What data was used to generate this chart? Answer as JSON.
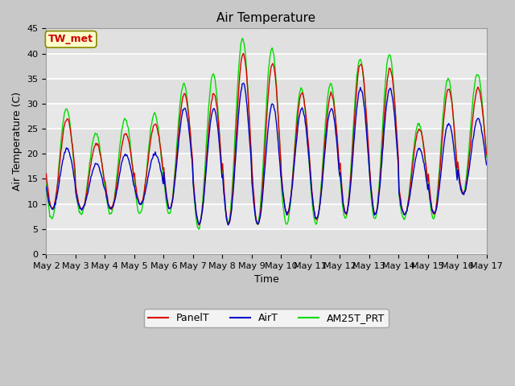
{
  "title": "Air Temperature",
  "xlabel": "Time",
  "ylabel": "Air Temperature (C)",
  "ylim": [
    0,
    45
  ],
  "yticks": [
    0,
    5,
    10,
    15,
    20,
    25,
    30,
    35,
    40,
    45
  ],
  "fig_bg": "#c8c8c8",
  "plot_bg": "#e8e8e8",
  "grid_color": "#ffffff",
  "annotation_text": "TW_met",
  "annotation_color": "#cc0000",
  "annotation_bg": "#ffffcc",
  "annotation_border": "#888800",
  "line_red": "#dd0000",
  "line_blue": "#0000cc",
  "line_green": "#00dd00",
  "legend_labels": [
    "PanelT",
    "AirT",
    "AM25T_PRT"
  ],
  "title_fontsize": 11,
  "axis_fontsize": 9,
  "tick_fontsize": 8,
  "line_width": 1.0
}
